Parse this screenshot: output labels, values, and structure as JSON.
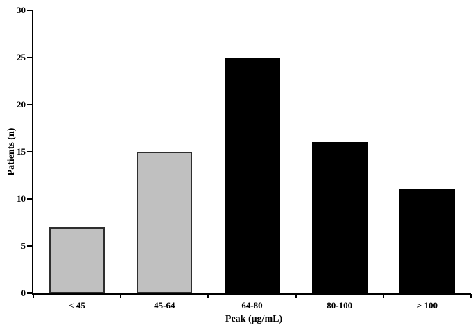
{
  "chart_data": {
    "type": "bar",
    "title": "",
    "categories": [
      "< 45",
      "45-64",
      "64-80",
      "80-100",
      "> 100"
    ],
    "values": [
      7,
      15,
      25,
      16,
      11
    ],
    "bar_colors": [
      "#c0c0c0",
      "#c0c0c0",
      "#000000",
      "#000000",
      "#000000"
    ],
    "bar_border_colors": [
      "#2e2e2e",
      "#2e2e2e",
      "#000000",
      "#000000",
      "#000000"
    ],
    "xlabel": "Peak (μg/mL)",
    "ylabel": "Patients (n)",
    "ylim": [
      0,
      30
    ],
    "yticks": [
      0,
      5,
      10,
      15,
      20,
      25,
      30
    ],
    "grid": false,
    "legend": "none",
    "background_color": "#ffffff",
    "axis_color": "#000000",
    "text_color": "#000000"
  }
}
